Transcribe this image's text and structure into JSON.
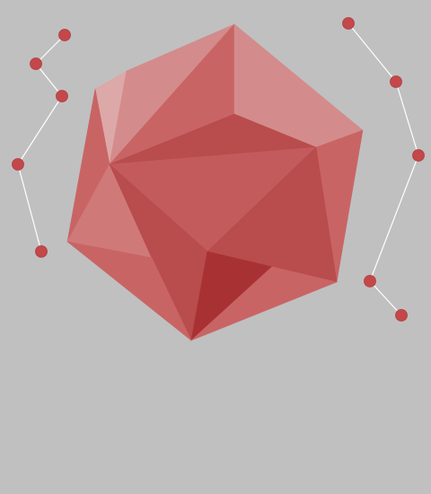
{
  "colors": {
    "background": "#c0c0c0",
    "line": "#ffffff",
    "node": "#c4474a",
    "facet_light": "#dda8a8",
    "facet_pale": "#d38c8b",
    "facet_mid_light": "#d07979",
    "facet_mid": "#c96465",
    "facet_base": "#c35b5c",
    "facet_dark": "#b94c4d",
    "facet_darker": "#b13c3e",
    "facet_deep": "#a83233"
  },
  "icons": {
    "gem": "polyhedron-icon",
    "left_chain": "node-chain-left-icon",
    "right_chain": "node-chain-right-icon"
  }
}
